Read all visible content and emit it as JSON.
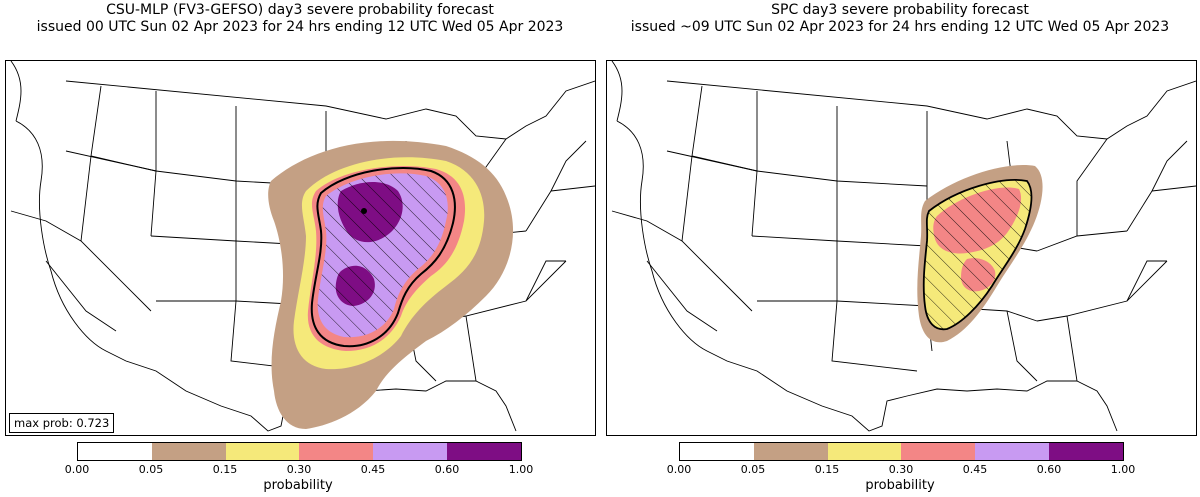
{
  "left_panel": {
    "title_line1": "CSU-MLP (FV3-GEFSO) day3 severe probability forecast",
    "title_line2": "issued 00 UTC Sun 02 Apr 2023 for 24 hrs ending 12 UTC Wed 05 Apr 2023",
    "max_prob_text": "max prob: 0.723"
  },
  "right_panel": {
    "title_line1": "SPC day3 severe probability forecast",
    "title_line2": "issued ~09 UTC Sun 02 Apr 2023 for 24 hrs ending 12 UTC Wed 05 Apr 2023"
  },
  "colorbar": {
    "label": "probability",
    "ticks": [
      "0.00",
      "0.05",
      "0.15",
      "0.30",
      "0.45",
      "0.60",
      "1.00"
    ],
    "colors": [
      "#ffffff",
      "#c4a084",
      "#f5e97a",
      "#f38686",
      "#c89af2",
      "#7e0d84"
    ]
  },
  "legend_colors": {
    "land": "#ffffff",
    "border": "#000000",
    "hatch": "#000000"
  }
}
